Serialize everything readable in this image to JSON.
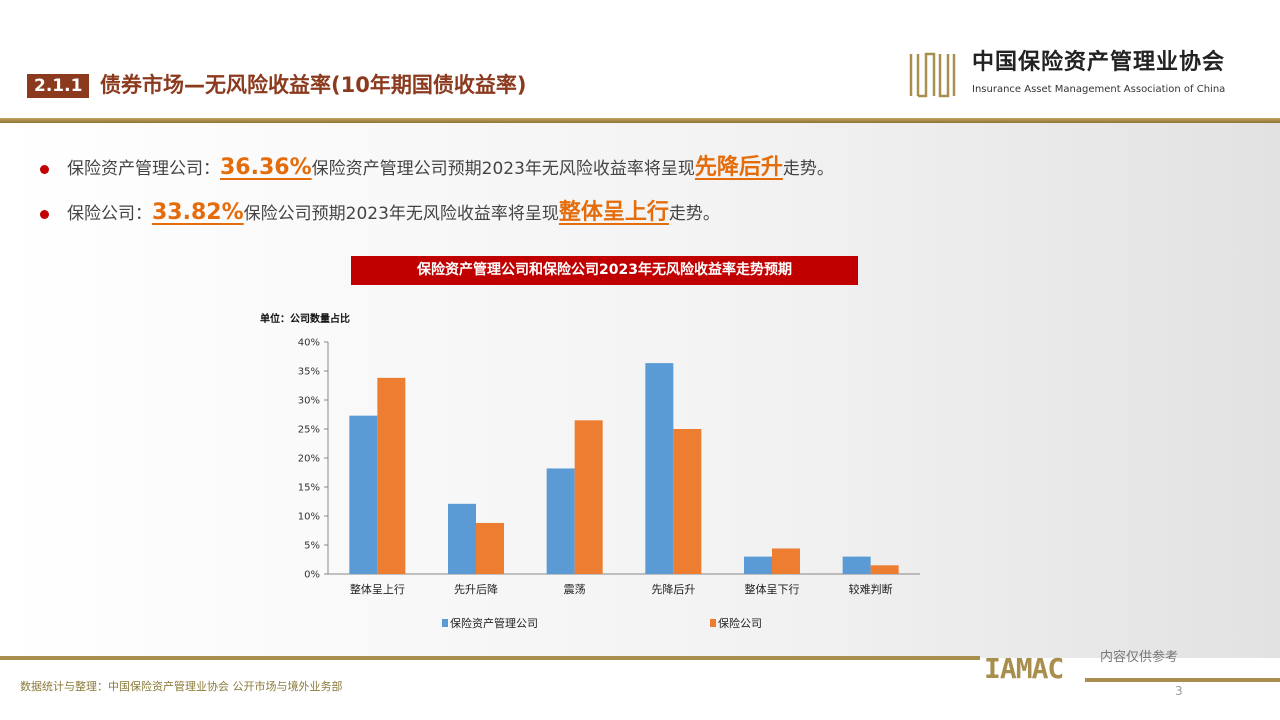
{
  "header": {
    "section_number": "2.1.1",
    "title": "债券市场—无风险收益率(10年期国债收益率)",
    "logo_cn": "中国保险资产管理业协会",
    "logo_en": "Insurance Asset Management Association of China",
    "logo_mark": "IAMAC"
  },
  "bullets": [
    {
      "prefix": "保险资产管理公司：",
      "value": "36.36%",
      "middle": "保险资产管理公司预期2023年无风险收益率将呈现",
      "trend": "先降后升",
      "suffix": "走势。"
    },
    {
      "prefix": "保险公司：",
      "value": "33.82%",
      "middle": "保险公司预期2023年无风险收益率将呈现",
      "trend": "整体呈上行",
      "suffix": "走势。"
    }
  ],
  "chart_title": "保险资产管理公司和保险公司2023年无风险收益率走势预期",
  "chart_data": {
    "type": "bar",
    "title": "保险资产管理公司和保险公司2023年无风险收益率走势预期",
    "unit_label": "单位：公司数量占比",
    "categories": [
      "整体呈上行",
      "先升后降",
      "震荡",
      "先降后升",
      "整体呈下行",
      "较难判断"
    ],
    "series": [
      {
        "name": "保险资产管理公司",
        "color": "#5b9bd5",
        "values": [
          27.3,
          12.1,
          18.2,
          36.36,
          3.0,
          3.0
        ]
      },
      {
        "name": "保险公司",
        "color": "#ed7d31",
        "values": [
          33.82,
          8.8,
          26.5,
          25.0,
          4.4,
          1.5
        ]
      }
    ],
    "ylim": [
      0,
      40
    ],
    "yticks": [
      "0%",
      "5%",
      "10%",
      "15%",
      "20%",
      "25%",
      "30%",
      "35%",
      "40%"
    ],
    "legend": "bottom",
    "grid": false
  },
  "footer": {
    "source": "数据统计与整理：中国保险资产管理业协会 公开市场与境外业务部",
    "note": "内容仅供参考",
    "page": "3",
    "logo_mark": "IAMAC"
  }
}
